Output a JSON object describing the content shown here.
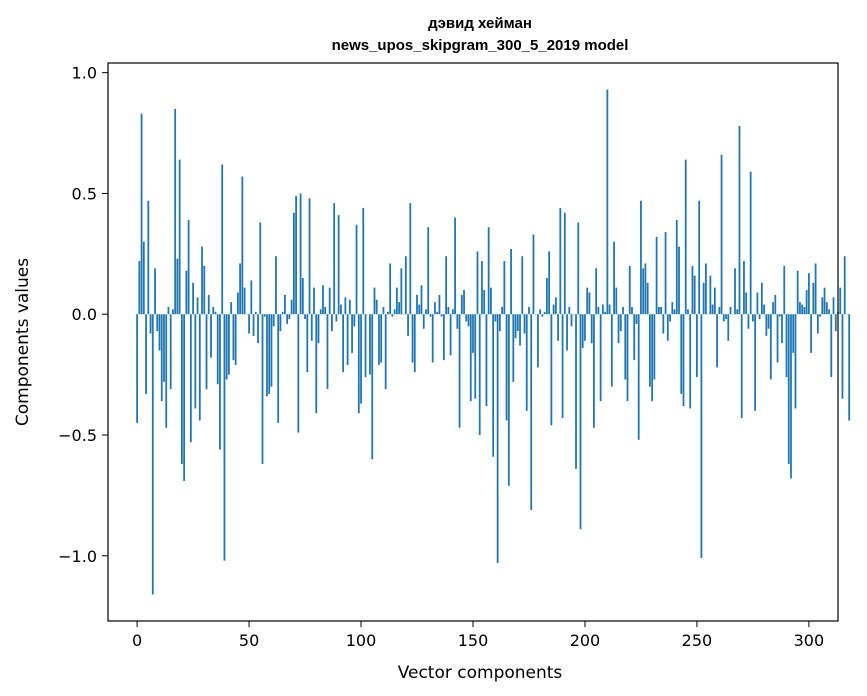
{
  "chart_data": {
    "type": "bar",
    "title_line1": "дэвид хейман",
    "title_line2": "news_upos_skipgram_300_5_2019 model",
    "xlabel": "Vector components",
    "ylabel": "Components values",
    "xlim": [
      -13,
      313
    ],
    "ylim": [
      -1.27,
      1.04
    ],
    "xticks": [
      0,
      50,
      100,
      150,
      200,
      250,
      300
    ],
    "xtick_labels": [
      "0",
      "50",
      "100",
      "150",
      "200",
      "250",
      "300"
    ],
    "yticks": [
      -1.0,
      -0.5,
      0.0,
      0.5,
      1.0
    ],
    "ytick_labels": [
      "−1.0",
      "−0.5",
      "0.0",
      "0.5",
      "1.0"
    ],
    "bar_color": "#1f77b4",
    "grid": false,
    "values": [
      -0.45,
      0.22,
      0.83,
      0.3,
      -0.33,
      0.47,
      -0.08,
      -1.16,
      0.19,
      -0.07,
      -0.15,
      -0.36,
      -0.28,
      -0.47,
      0.03,
      -0.31,
      0.02,
      0.85,
      0.23,
      0.64,
      -0.62,
      -0.69,
      0.18,
      0.39,
      -0.53,
      0.13,
      -0.39,
      0.07,
      -0.44,
      0.28,
      0.2,
      -0.31,
      0.08,
      -0.18,
      0.03,
      0.01,
      -0.29,
      -0.56,
      0.62,
      -1.02,
      -0.27,
      -0.25,
      0.05,
      -0.19,
      -0.21,
      0.09,
      0.21,
      0.57,
      0.11,
      0.0,
      -0.08,
      0.14,
      -0.09,
      0.01,
      -0.12,
      0.38,
      -0.62,
      -0.01,
      -0.34,
      -0.33,
      -0.3,
      -0.05,
      0.24,
      -0.45,
      -0.07,
      0.01,
      0.08,
      -0.04,
      -0.02,
      0.06,
      0.42,
      0.49,
      -0.49,
      0.5,
      0.15,
      -0.02,
      -0.24,
      0.48,
      -0.11,
      0.11,
      -0.41,
      -0.12,
      0.02,
      0.12,
      0.03,
      -0.31,
      0.11,
      -0.07,
      0.46,
      -0.03,
      0.41,
      0.04,
      -0.24,
      0.07,
      -0.21,
      0.06,
      -0.16,
      -0.05,
      0.37,
      -0.41,
      -0.37,
      0.44,
      -0.26,
      0.0,
      -0.25,
      -0.6,
      0.11,
      0.06,
      -0.21,
      -0.2,
      0.03,
      -0.31,
      0.01,
      0.21,
      -0.01,
      0.02,
      0.11,
      0.05,
      0.19,
      0.0,
      0.24,
      -0.09,
      0.46,
      -0.2,
      -0.24,
      0.08,
      0.04,
      0.12,
      -0.06,
      0.02,
      0.36,
      -0.01,
      -0.2,
      0.05,
      0.01,
      0.08,
      -0.01,
      -0.19,
      0.24,
      0.03,
      -0.17,
      0.02,
      0.4,
      -0.06,
      -0.47,
      0.08,
      0.1,
      -0.03,
      -0.05,
      -0.36,
      -0.16,
      -0.35,
      0.26,
      -0.5,
      0.22,
      0.1,
      -0.38,
      0.36,
      0.11,
      -0.59,
      -0.03,
      -1.03,
      -0.07,
      0.03,
      0.22,
      -0.44,
      -0.71,
      0.27,
      -0.28,
      -0.1,
      -0.07,
      -0.13,
      0.24,
      -0.08,
      -0.4,
      0.03,
      -0.81,
      0.33,
      0.0,
      -0.22,
      0.02,
      -0.01,
      0.01,
      0.15,
      0.26,
      -0.46,
      0.04,
      0.07,
      -0.11,
      0.44,
      -0.43,
      0.42,
      -0.15,
      0.03,
      -0.05,
      0.0,
      -0.64,
      0.38,
      -0.89,
      -0.14,
      -0.11,
      0.11,
      0.09,
      -0.12,
      -0.47,
      0.19,
      0.03,
      -0.36,
      0.04,
      0.01,
      0.93,
      0.04,
      -0.3,
      0.3,
      0.11,
      -0.12,
      -0.07,
      0.03,
      -0.27,
      -0.36,
      0.2,
      0.03,
      -0.19,
      -0.04,
      -0.52,
      0.47,
      0.19,
      0.21,
      0.13,
      -0.3,
      -0.36,
      -0.27,
      0.32,
      0.03,
      0.03,
      -0.08,
      0.34,
      -0.11,
      -0.03,
      0.05,
      0.02,
      0.39,
      0.28,
      -0.33,
      -0.38,
      0.64,
      0.02,
      -0.39,
      0.2,
      0.16,
      -0.26,
      0.47,
      -1.01,
      0.13,
      0.21,
      0.0,
      0.16,
      0.04,
      0.11,
      -0.22,
      0.03,
      0.66,
      -0.03,
      -0.02,
      -0.11,
      0.03,
      0.0,
      0.19,
      0.02,
      0.78,
      -0.43,
      0.22,
      0.09,
      -0.06,
      0.59,
      -0.03,
      -0.4,
      0.09,
      -0.02,
      0.13,
      0.04,
      -0.09,
      -0.06,
      -0.27,
      0.05,
      0.08,
      -0.2,
      -0.01,
      -0.12,
      0.2,
      -0.26,
      -0.62,
      -0.68,
      -0.16,
      -0.39,
      0.18,
      0.05,
      0.04,
      0.03,
      0.1,
      0.17,
      -0.16,
      0.13,
      0.21,
      -0.08,
      -0.01,
      0.07,
      0.11,
      0.05,
      0.02,
      -0.26,
      0.07,
      -0.07,
      0.01,
      0.11,
      -0.35,
      0.24,
      0.0,
      -0.44
    ]
  }
}
